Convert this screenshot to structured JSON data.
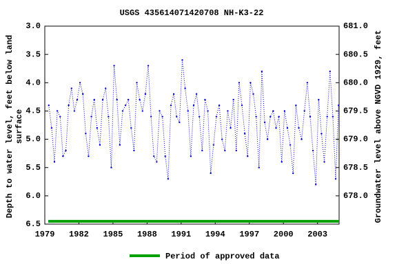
{
  "chart_data": {
    "type": "line",
    "title": "USGS 435614071420708 NH-K3-22",
    "y_label": [
      "Depth to water level, feet below land",
      "surface"
    ],
    "y2_label": "Groundwater level above NGVD 1929, feet",
    "xlim": [
      1979,
      2004.9
    ],
    "xticks": [
      1979,
      1982,
      1985,
      1988,
      1991,
      1994,
      1997,
      2000,
      2003
    ],
    "ylim": [
      3.0,
      6.5
    ],
    "yticks": [
      {
        "value": 3,
        "label": "3.0"
      },
      3.5,
      {
        "value": 4,
        "label": "4.0"
      },
      4.5,
      {
        "value": 5,
        "label": "5.0"
      },
      5.5,
      {
        "value": 6,
        "label": "6.0"
      },
      6.5
    ],
    "y2lim": [
      681.0,
      677.5
    ],
    "y2ticks": [
      {
        "value": 678,
        "label": "678.0"
      },
      678.5,
      {
        "value": 679,
        "label": "679.0"
      },
      679.5,
      {
        "value": 680,
        "label": "680.0"
      },
      680.5,
      {
        "value": 681,
        "label": "681.0"
      }
    ],
    "grid": false,
    "series": [
      {
        "color": "#0000cc",
        "x": [
          1979.35,
          1979.6,
          1979.85,
          1980.1,
          1980.35,
          1980.6,
          1980.85,
          1981.1,
          1981.35,
          1981.6,
          1981.85,
          1982.1,
          1982.35,
          1982.6,
          1982.85,
          1983.1,
          1983.35,
          1983.6,
          1983.85,
          1984.1,
          1984.35,
          1984.6,
          1984.85,
          1985.1,
          1985.35,
          1985.6,
          1985.85,
          1986.1,
          1986.35,
          1986.6,
          1986.85,
          1987.1,
          1987.35,
          1987.6,
          1987.85,
          1988.1,
          1988.35,
          1988.6,
          1988.85,
          1989.1,
          1989.35,
          1989.6,
          1989.85,
          1990.1,
          1990.35,
          1990.6,
          1990.85,
          1991.1,
          1991.35,
          1991.6,
          1991.85,
          1992.1,
          1992.35,
          1992.6,
          1992.85,
          1993.1,
          1993.35,
          1993.6,
          1993.85,
          1994.1,
          1994.35,
          1994.6,
          1994.85,
          1995.1,
          1995.35,
          1995.6,
          1995.85,
          1996.1,
          1996.35,
          1996.6,
          1996.85,
          1997.1,
          1997.35,
          1997.6,
          1997.85,
          1998.1,
          1998.35,
          1998.6,
          1998.85,
          1999.1,
          1999.35,
          1999.6,
          1999.85,
          2000.1,
          2000.35,
          2000.6,
          2000.85,
          2001.1,
          2001.35,
          2001.6,
          2001.85,
          2002.1,
          2002.35,
          2002.6,
          2002.85,
          2003.1,
          2003.35,
          2003.6,
          2003.85,
          2004.1,
          2004.35,
          2004.6,
          2004.85
        ],
        "values": [
          4.4,
          4.8,
          5.4,
          4.5,
          4.6,
          5.3,
          5.2,
          4.4,
          4.1,
          4.5,
          4.3,
          4.0,
          4.2,
          4.9,
          5.3,
          4.6,
          4.3,
          4.8,
          5.1,
          4.3,
          4.1,
          4.6,
          5.5,
          3.7,
          4.3,
          5.1,
          4.5,
          4.4,
          4.3,
          4.8,
          5.2,
          4.0,
          4.3,
          4.5,
          4.2,
          3.7,
          4.6,
          5.3,
          5.4,
          4.5,
          4.6,
          5.3,
          5.7,
          4.4,
          4.2,
          4.6,
          4.7,
          3.6,
          4.1,
          4.5,
          5.3,
          4.4,
          4.2,
          4.6,
          5.2,
          4.3,
          4.5,
          5.6,
          5.1,
          4.6,
          4.4,
          5.0,
          5.2,
          4.5,
          4.8,
          4.3,
          5.2,
          4.0,
          4.4,
          4.9,
          5.3,
          4.0,
          4.2,
          4.6,
          5.5,
          3.8,
          4.7,
          5.0,
          4.6,
          4.5,
          4.8,
          4.6,
          5.4,
          4.5,
          4.8,
          5.1,
          5.6,
          4.4,
          4.8,
          5.0,
          4.5,
          4.0,
          4.6,
          5.2,
          5.8,
          4.3,
          4.9,
          5.4,
          4.6,
          3.8,
          4.6,
          5.7,
          4.4
        ]
      }
    ],
    "period": {
      "name": "Period of approved data",
      "color": "#00a000",
      "start": 1979.3,
      "end": 2004.9
    }
  }
}
